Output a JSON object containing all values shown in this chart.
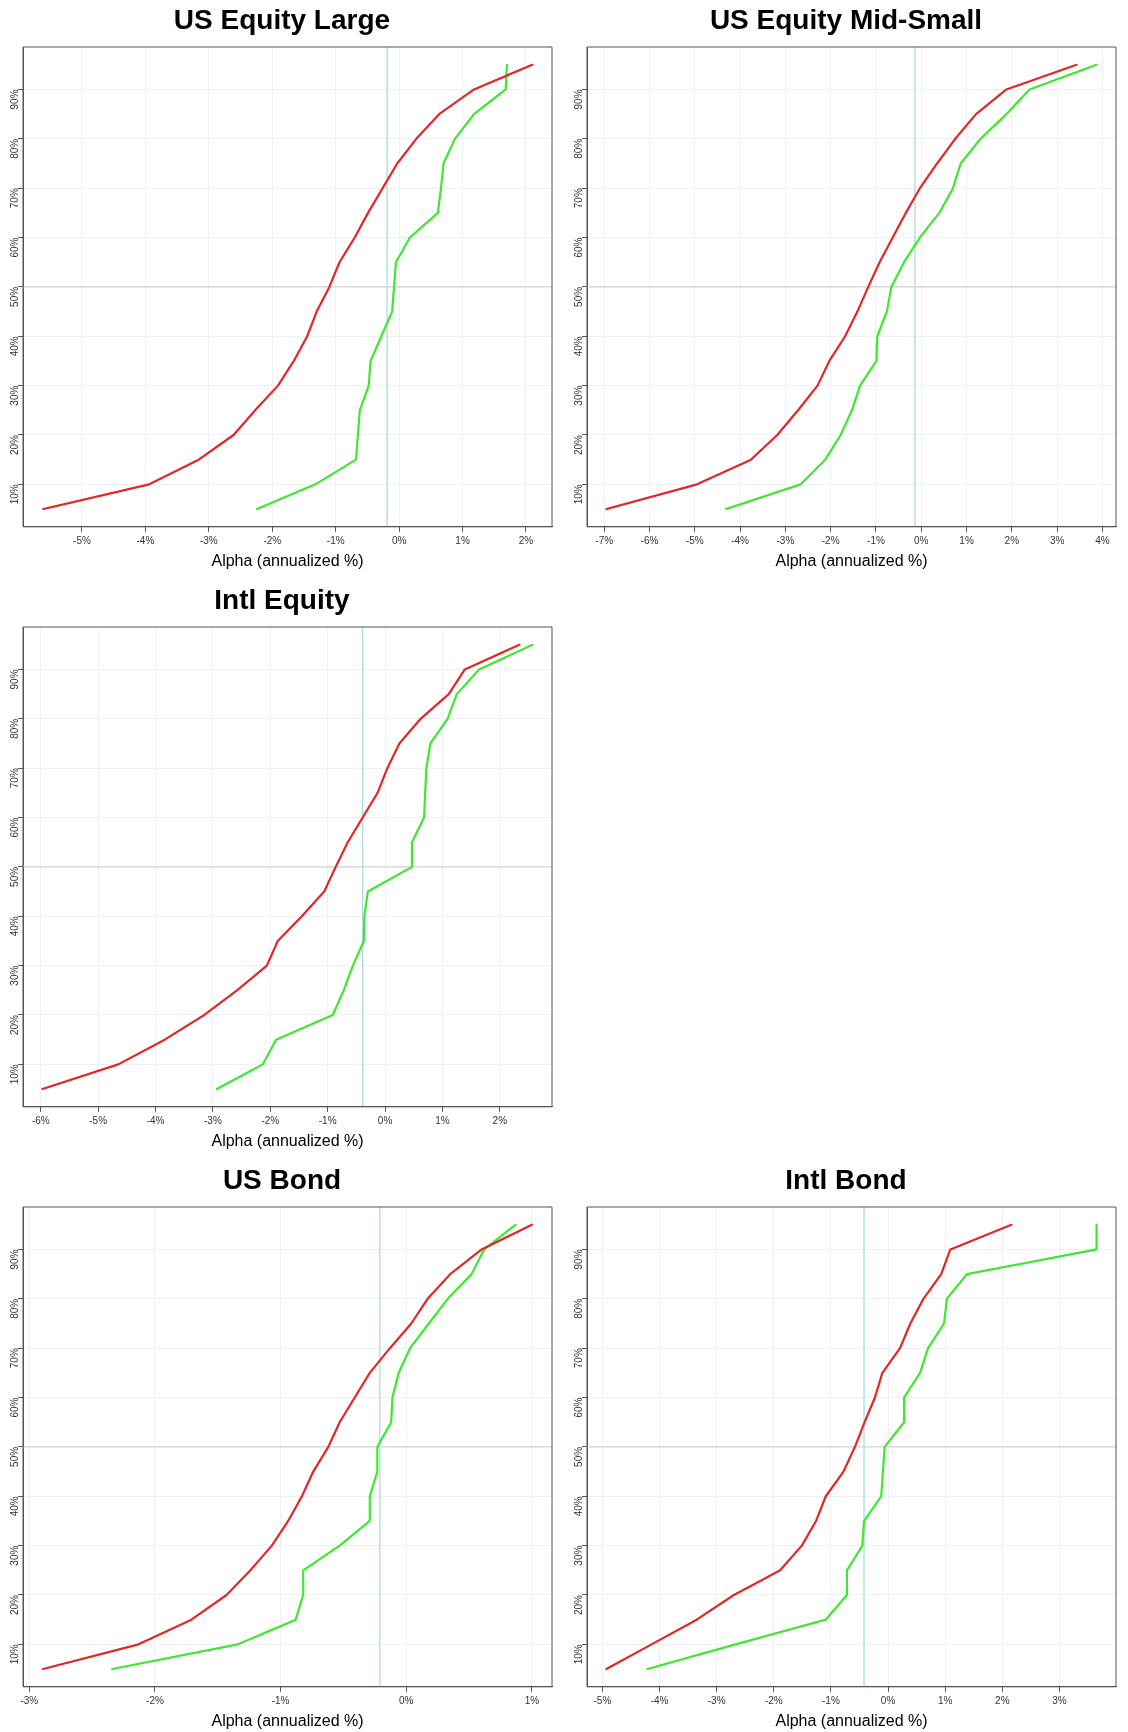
{
  "chart_data": [
    {
      "type": "line",
      "title": "US Equity Large",
      "xlabel": "Alpha (annualized %)",
      "marker": "none",
      "line_style": "solid",
      "grid": true,
      "legend": false,
      "xlim": [
        -5.93,
        2.41
      ],
      "ylim": [
        1.4,
        98.6
      ],
      "xticks": [
        {
          "value": -5,
          "label": "-5%"
        },
        {
          "value": -4,
          "label": "-4%"
        },
        {
          "value": -3,
          "label": "-3%"
        },
        {
          "value": -2,
          "label": "-2%"
        },
        {
          "value": -1,
          "label": "-1%"
        },
        {
          "value": 0,
          "label": "0%"
        },
        {
          "value": 1,
          "label": "1%"
        },
        {
          "value": 2,
          "label": "2%"
        }
      ],
      "yticks": [
        {
          "value": 10,
          "label": "10%"
        },
        {
          "value": 20,
          "label": "20%"
        },
        {
          "value": 30,
          "label": "30%"
        },
        {
          "value": 40,
          "label": "40%"
        },
        {
          "value": 50,
          "label": "50%"
        },
        {
          "value": 60,
          "label": "60%"
        },
        {
          "value": 70,
          "label": "70%"
        },
        {
          "value": 80,
          "label": "80%"
        },
        {
          "value": 90,
          "label": "90%"
        }
      ],
      "ref_lines": [
        {
          "axis": "x",
          "value": -0.19,
          "color": "#add8e6"
        },
        {
          "axis": "y",
          "value": 50,
          "color": "#d3d3d3"
        }
      ],
      "series": [
        {
          "color": "#e32626",
          "x": [
            -5.61,
            -3.94,
            -3.16,
            -2.61,
            -2.27,
            -1.91,
            -1.66,
            -1.45,
            -1.3,
            -1.1,
            -0.94,
            -0.7,
            -0.49,
            -0.26,
            -0.03,
            0.27,
            0.63,
            1.18,
            2.1
          ],
          "values": [
            5,
            10,
            15,
            20,
            25,
            30,
            35,
            40,
            45,
            50,
            55,
            60,
            65,
            70,
            75,
            80,
            85,
            90,
            95
          ]
        },
        {
          "color": "#3fe830",
          "x": [
            -2.24,
            -1.32,
            -0.68,
            -0.65,
            -0.62,
            -0.48,
            -0.45,
            -0.28,
            -0.11,
            -0.08,
            -0.05,
            0.17,
            0.61,
            0.66,
            0.7,
            0.88,
            1.18,
            1.68,
            1.7
          ],
          "values": [
            5,
            10,
            15,
            20,
            25,
            30,
            35,
            40,
            45,
            50,
            55,
            60,
            65,
            70,
            75,
            80,
            85,
            90,
            95
          ]
        }
      ]
    },
    {
      "type": "line",
      "title": "US Equity Mid-Small",
      "xlabel": "Alpha (annualized %)",
      "marker": "none",
      "line_style": "solid",
      "grid": true,
      "legend": false,
      "xlim": [
        -7.38,
        4.3
      ],
      "ylim": [
        1.4,
        98.6
      ],
      "xticks": [
        {
          "value": -7,
          "label": "-7%"
        },
        {
          "value": -6,
          "label": "-6%"
        },
        {
          "value": -5,
          "label": "-5%"
        },
        {
          "value": -4,
          "label": "-4%"
        },
        {
          "value": -3,
          "label": "-3%"
        },
        {
          "value": -2,
          "label": "-2%"
        },
        {
          "value": -1,
          "label": "-1%"
        },
        {
          "value": 0,
          "label": "0%"
        },
        {
          "value": 1,
          "label": "1%"
        },
        {
          "value": 2,
          "label": "2%"
        },
        {
          "value": 3,
          "label": "3%"
        },
        {
          "value": 4,
          "label": "4%"
        }
      ],
      "yticks": [
        {
          "value": 10,
          "label": "10%"
        },
        {
          "value": 20,
          "label": "20%"
        },
        {
          "value": 30,
          "label": "30%"
        },
        {
          "value": 40,
          "label": "40%"
        },
        {
          "value": 50,
          "label": "50%"
        },
        {
          "value": 60,
          "label": "60%"
        },
        {
          "value": 70,
          "label": "70%"
        },
        {
          "value": 80,
          "label": "80%"
        },
        {
          "value": 90,
          "label": "90%"
        }
      ],
      "ref_lines": [
        {
          "axis": "x",
          "value": -0.14,
          "color": "#add8e6"
        },
        {
          "axis": "y",
          "value": 50,
          "color": "#d3d3d3"
        }
      ],
      "series": [
        {
          "color": "#e32626",
          "x": [
            -6.95,
            -4.95,
            -3.76,
            -3.18,
            -2.72,
            -2.29,
            -2.03,
            -1.68,
            -1.41,
            -1.17,
            -0.92,
            -0.63,
            -0.34,
            -0.03,
            0.35,
            0.75,
            1.21,
            1.88,
            3.43
          ],
          "values": [
            5,
            10,
            15,
            20,
            25,
            30,
            35,
            40,
            45,
            50,
            55,
            60,
            65,
            70,
            75,
            80,
            85,
            90,
            95
          ]
        },
        {
          "color": "#3fe830",
          "x": [
            -4.31,
            -2.66,
            -2.12,
            -1.78,
            -1.53,
            -1.35,
            -0.99,
            -0.97,
            -0.76,
            -0.66,
            -0.38,
            -0.03,
            0.4,
            0.7,
            0.87,
            1.31,
            1.88,
            2.39,
            3.87
          ],
          "values": [
            5,
            10,
            15,
            20,
            25,
            30,
            35,
            40,
            45,
            50,
            55,
            60,
            65,
            70,
            75,
            80,
            85,
            90,
            95
          ]
        }
      ]
    },
    {
      "type": "line",
      "title": "Intl Equity",
      "xlabel": "Alpha (annualized %)",
      "marker": "none",
      "line_style": "solid",
      "grid": true,
      "legend": false,
      "xlim": [
        -6.31,
        2.91
      ],
      "ylim": [
        1.4,
        98.6
      ],
      "xticks": [
        {
          "value": -6,
          "label": "-6%"
        },
        {
          "value": -5,
          "label": "-5%"
        },
        {
          "value": -4,
          "label": "-4%"
        },
        {
          "value": -3,
          "label": "-3%"
        },
        {
          "value": -2,
          "label": "-2%"
        },
        {
          "value": -1,
          "label": "-1%"
        },
        {
          "value": 0,
          "label": "0%"
        },
        {
          "value": 1,
          "label": "1%"
        },
        {
          "value": 2,
          "label": "2%"
        }
      ],
      "yticks": [
        {
          "value": 10,
          "label": "10%"
        },
        {
          "value": 20,
          "label": "20%"
        },
        {
          "value": 30,
          "label": "30%"
        },
        {
          "value": 40,
          "label": "40%"
        },
        {
          "value": 50,
          "label": "50%"
        },
        {
          "value": 60,
          "label": "60%"
        },
        {
          "value": 70,
          "label": "70%"
        },
        {
          "value": 80,
          "label": "80%"
        },
        {
          "value": 90,
          "label": "90%"
        }
      ],
      "ref_lines": [
        {
          "axis": "x",
          "value": -0.39,
          "color": "#add8e6"
        },
        {
          "axis": "y",
          "value": 50,
          "color": "#d3d3d3"
        }
      ],
      "series": [
        {
          "color": "#e32626",
          "x": [
            -5.97,
            -4.65,
            -3.84,
            -3.15,
            -2.58,
            -2.06,
            -1.87,
            -1.45,
            -1.06,
            -0.86,
            -0.65,
            -0.39,
            -0.13,
            0.04,
            0.25,
            0.62,
            1.11,
            1.39,
            2.34
          ],
          "values": [
            5,
            10,
            15,
            20,
            25,
            30,
            35,
            40,
            45,
            50,
            55,
            60,
            65,
            70,
            75,
            80,
            85,
            90,
            95
          ]
        },
        {
          "color": "#3fe830",
          "x": [
            -2.93,
            -2.13,
            -1.9,
            -0.91,
            -0.72,
            -0.56,
            -0.37,
            -0.36,
            -0.3,
            0.47,
            0.47,
            0.68,
            0.7,
            0.72,
            0.79,
            1.09,
            1.25,
            1.64,
            2.57
          ],
          "values": [
            5,
            10,
            15,
            20,
            25,
            30,
            35,
            40,
            45,
            50,
            55,
            60,
            65,
            70,
            75,
            80,
            85,
            90,
            95
          ]
        }
      ]
    },
    {
      "type": "line",
      "title": "US Bond",
      "xlabel": "Alpha (annualized %)",
      "marker": "none",
      "line_style": "solid",
      "grid": true,
      "legend": false,
      "xlim": [
        -3.05,
        1.16
      ],
      "ylim": [
        1.4,
        98.6
      ],
      "xticks": [
        {
          "value": -3,
          "label": "-3%"
        },
        {
          "value": -2,
          "label": "-2%"
        },
        {
          "value": -1,
          "label": "-1%"
        },
        {
          "value": 0,
          "label": "0%"
        },
        {
          "value": 1,
          "label": "1%"
        }
      ],
      "yticks": [
        {
          "value": 10,
          "label": "10%"
        },
        {
          "value": 20,
          "label": "20%"
        },
        {
          "value": 30,
          "label": "30%"
        },
        {
          "value": 40,
          "label": "40%"
        },
        {
          "value": 50,
          "label": "50%"
        },
        {
          "value": 60,
          "label": "60%"
        },
        {
          "value": 70,
          "label": "70%"
        },
        {
          "value": 80,
          "label": "80%"
        },
        {
          "value": 90,
          "label": "90%"
        }
      ],
      "ref_lines": [
        {
          "axis": "x",
          "value": -0.21,
          "color": "#add8e6"
        },
        {
          "axis": "y",
          "value": 50,
          "color": "#d3d3d3"
        }
      ],
      "series": [
        {
          "color": "#e32626",
          "x": [
            -2.89,
            -2.13,
            -1.71,
            -1.43,
            -1.24,
            -1.07,
            -0.94,
            -0.83,
            -0.74,
            -0.62,
            -0.53,
            -0.41,
            -0.29,
            -0.13,
            0.04,
            0.17,
            0.35,
            0.6,
            1.0
          ],
          "values": [
            5,
            10,
            15,
            20,
            25,
            30,
            35,
            40,
            45,
            50,
            55,
            60,
            65,
            70,
            75,
            80,
            85,
            90,
            95
          ]
        },
        {
          "color": "#3fe830",
          "x": [
            -2.34,
            -1.34,
            -0.88,
            -0.82,
            -0.82,
            -0.53,
            -0.29,
            -0.29,
            -0.23,
            -0.23,
            -0.12,
            -0.11,
            -0.06,
            0.03,
            0.18,
            0.33,
            0.52,
            0.62,
            0.87
          ],
          "values": [
            5,
            10,
            15,
            20,
            25,
            30,
            35,
            40,
            45,
            50,
            55,
            60,
            65,
            70,
            75,
            80,
            85,
            90,
            95
          ]
        }
      ]
    },
    {
      "type": "line",
      "title": "Intl Bond",
      "xlabel": "Alpha (annualized %)",
      "marker": "none",
      "line_style": "solid",
      "grid": true,
      "legend": false,
      "xlim": [
        -5.27,
        3.99
      ],
      "ylim": [
        1.4,
        98.6
      ],
      "xticks": [
        {
          "value": -5,
          "label": "-5%"
        },
        {
          "value": -4,
          "label": "-4%"
        },
        {
          "value": -3,
          "label": "-3%"
        },
        {
          "value": -2,
          "label": "-2%"
        },
        {
          "value": -1,
          "label": "-1%"
        },
        {
          "value": 0,
          "label": "0%"
        },
        {
          "value": 1,
          "label": "1%"
        },
        {
          "value": 2,
          "label": "2%"
        },
        {
          "value": 3,
          "label": "3%"
        }
      ],
      "yticks": [
        {
          "value": 10,
          "label": "10%"
        },
        {
          "value": 20,
          "label": "20%"
        },
        {
          "value": 30,
          "label": "30%"
        },
        {
          "value": 40,
          "label": "40%"
        },
        {
          "value": 50,
          "label": "50%"
        },
        {
          "value": 60,
          "label": "60%"
        },
        {
          "value": 70,
          "label": "70%"
        },
        {
          "value": 80,
          "label": "80%"
        },
        {
          "value": 90,
          "label": "90%"
        }
      ],
      "ref_lines": [
        {
          "axis": "x",
          "value": -0.42,
          "color": "#add8e6"
        },
        {
          "axis": "y",
          "value": 50,
          "color": "#d3d3d3"
        }
      ],
      "series": [
        {
          "color": "#e32626",
          "x": [
            -4.93,
            -4.14,
            -3.35,
            -2.7,
            -1.89,
            -1.51,
            -1.26,
            -1.09,
            -0.78,
            -0.58,
            -0.41,
            -0.23,
            -0.1,
            0.21,
            0.39,
            0.62,
            0.93,
            1.09,
            2.16
          ],
          "values": [
            5,
            10,
            15,
            20,
            25,
            30,
            35,
            40,
            45,
            50,
            55,
            60,
            65,
            70,
            75,
            80,
            85,
            90,
            95
          ]
        },
        {
          "color": "#3fe830",
          "x": [
            -4.21,
            -2.67,
            -1.09,
            -0.72,
            -0.72,
            -0.45,
            -0.42,
            -0.12,
            -0.09,
            -0.06,
            0.28,
            0.28,
            0.56,
            0.7,
            0.98,
            1.03,
            1.38,
            3.65,
            3.65
          ],
          "values": [
            5,
            10,
            15,
            20,
            25,
            30,
            35,
            40,
            45,
            50,
            55,
            60,
            65,
            70,
            75,
            80,
            85,
            90,
            95
          ]
        }
      ]
    }
  ]
}
